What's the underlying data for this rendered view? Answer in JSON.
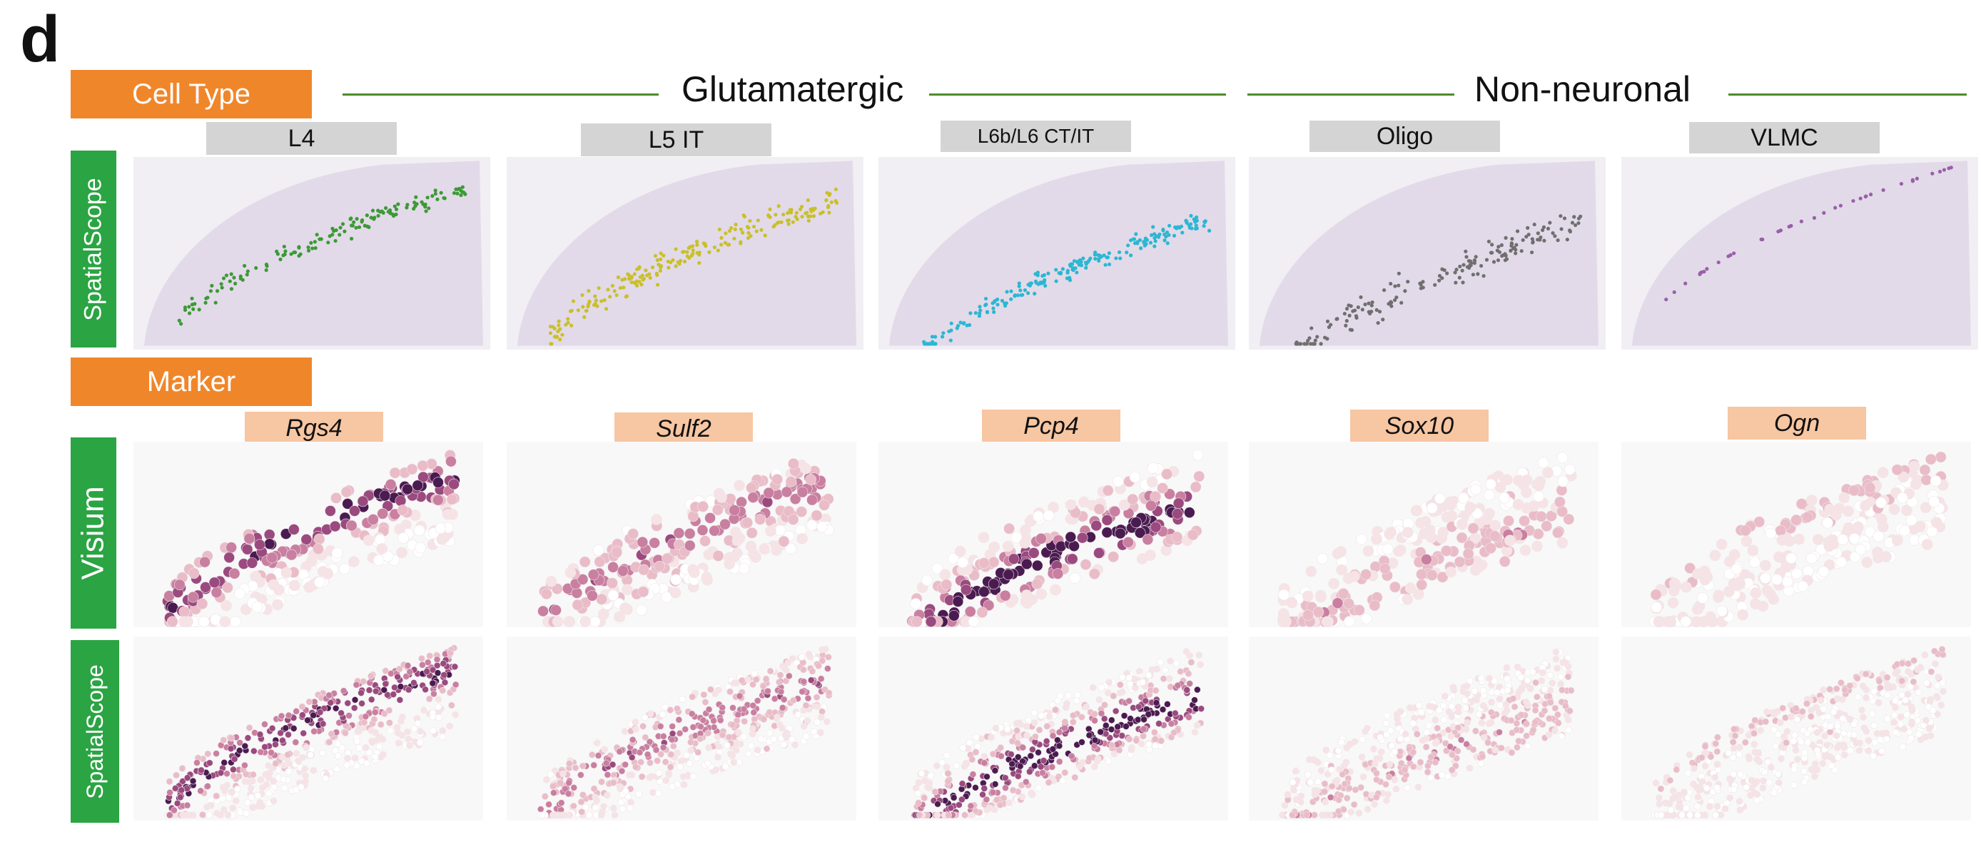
{
  "panel_letter": "d",
  "section_labels": {
    "cell_type": "Cell Type",
    "marker": "Marker"
  },
  "groups": [
    {
      "label": "Glutamatergic"
    },
    {
      "label": "Non-neuronal"
    }
  ],
  "row_labels": {
    "top": "SpatialScope",
    "visium": "Visium",
    "bottom": "SpatialScope"
  },
  "cell_types": [
    "L4",
    "L5 IT",
    "L6b/L6 CT/IT",
    "Oligo",
    "VLMC"
  ],
  "markers": [
    "Rgs4",
    "Sulf2",
    "Pcp4",
    "Sox10",
    "Ogn"
  ],
  "colors": {
    "orange": "#F0862A",
    "green": "#2BA443",
    "group_line": "#4E8A2A",
    "tissue": "#E2DAE9",
    "cell_type_dots": [
      "#3C9A35",
      "#C9C02A",
      "#2BB7D2",
      "#6F6F6F",
      "#9A5FA8"
    ],
    "expression_scale": [
      "#F6E3E6",
      "#E9BCC8",
      "#C97FA0",
      "#9A4A7E",
      "#4A1B50"
    ]
  }
}
